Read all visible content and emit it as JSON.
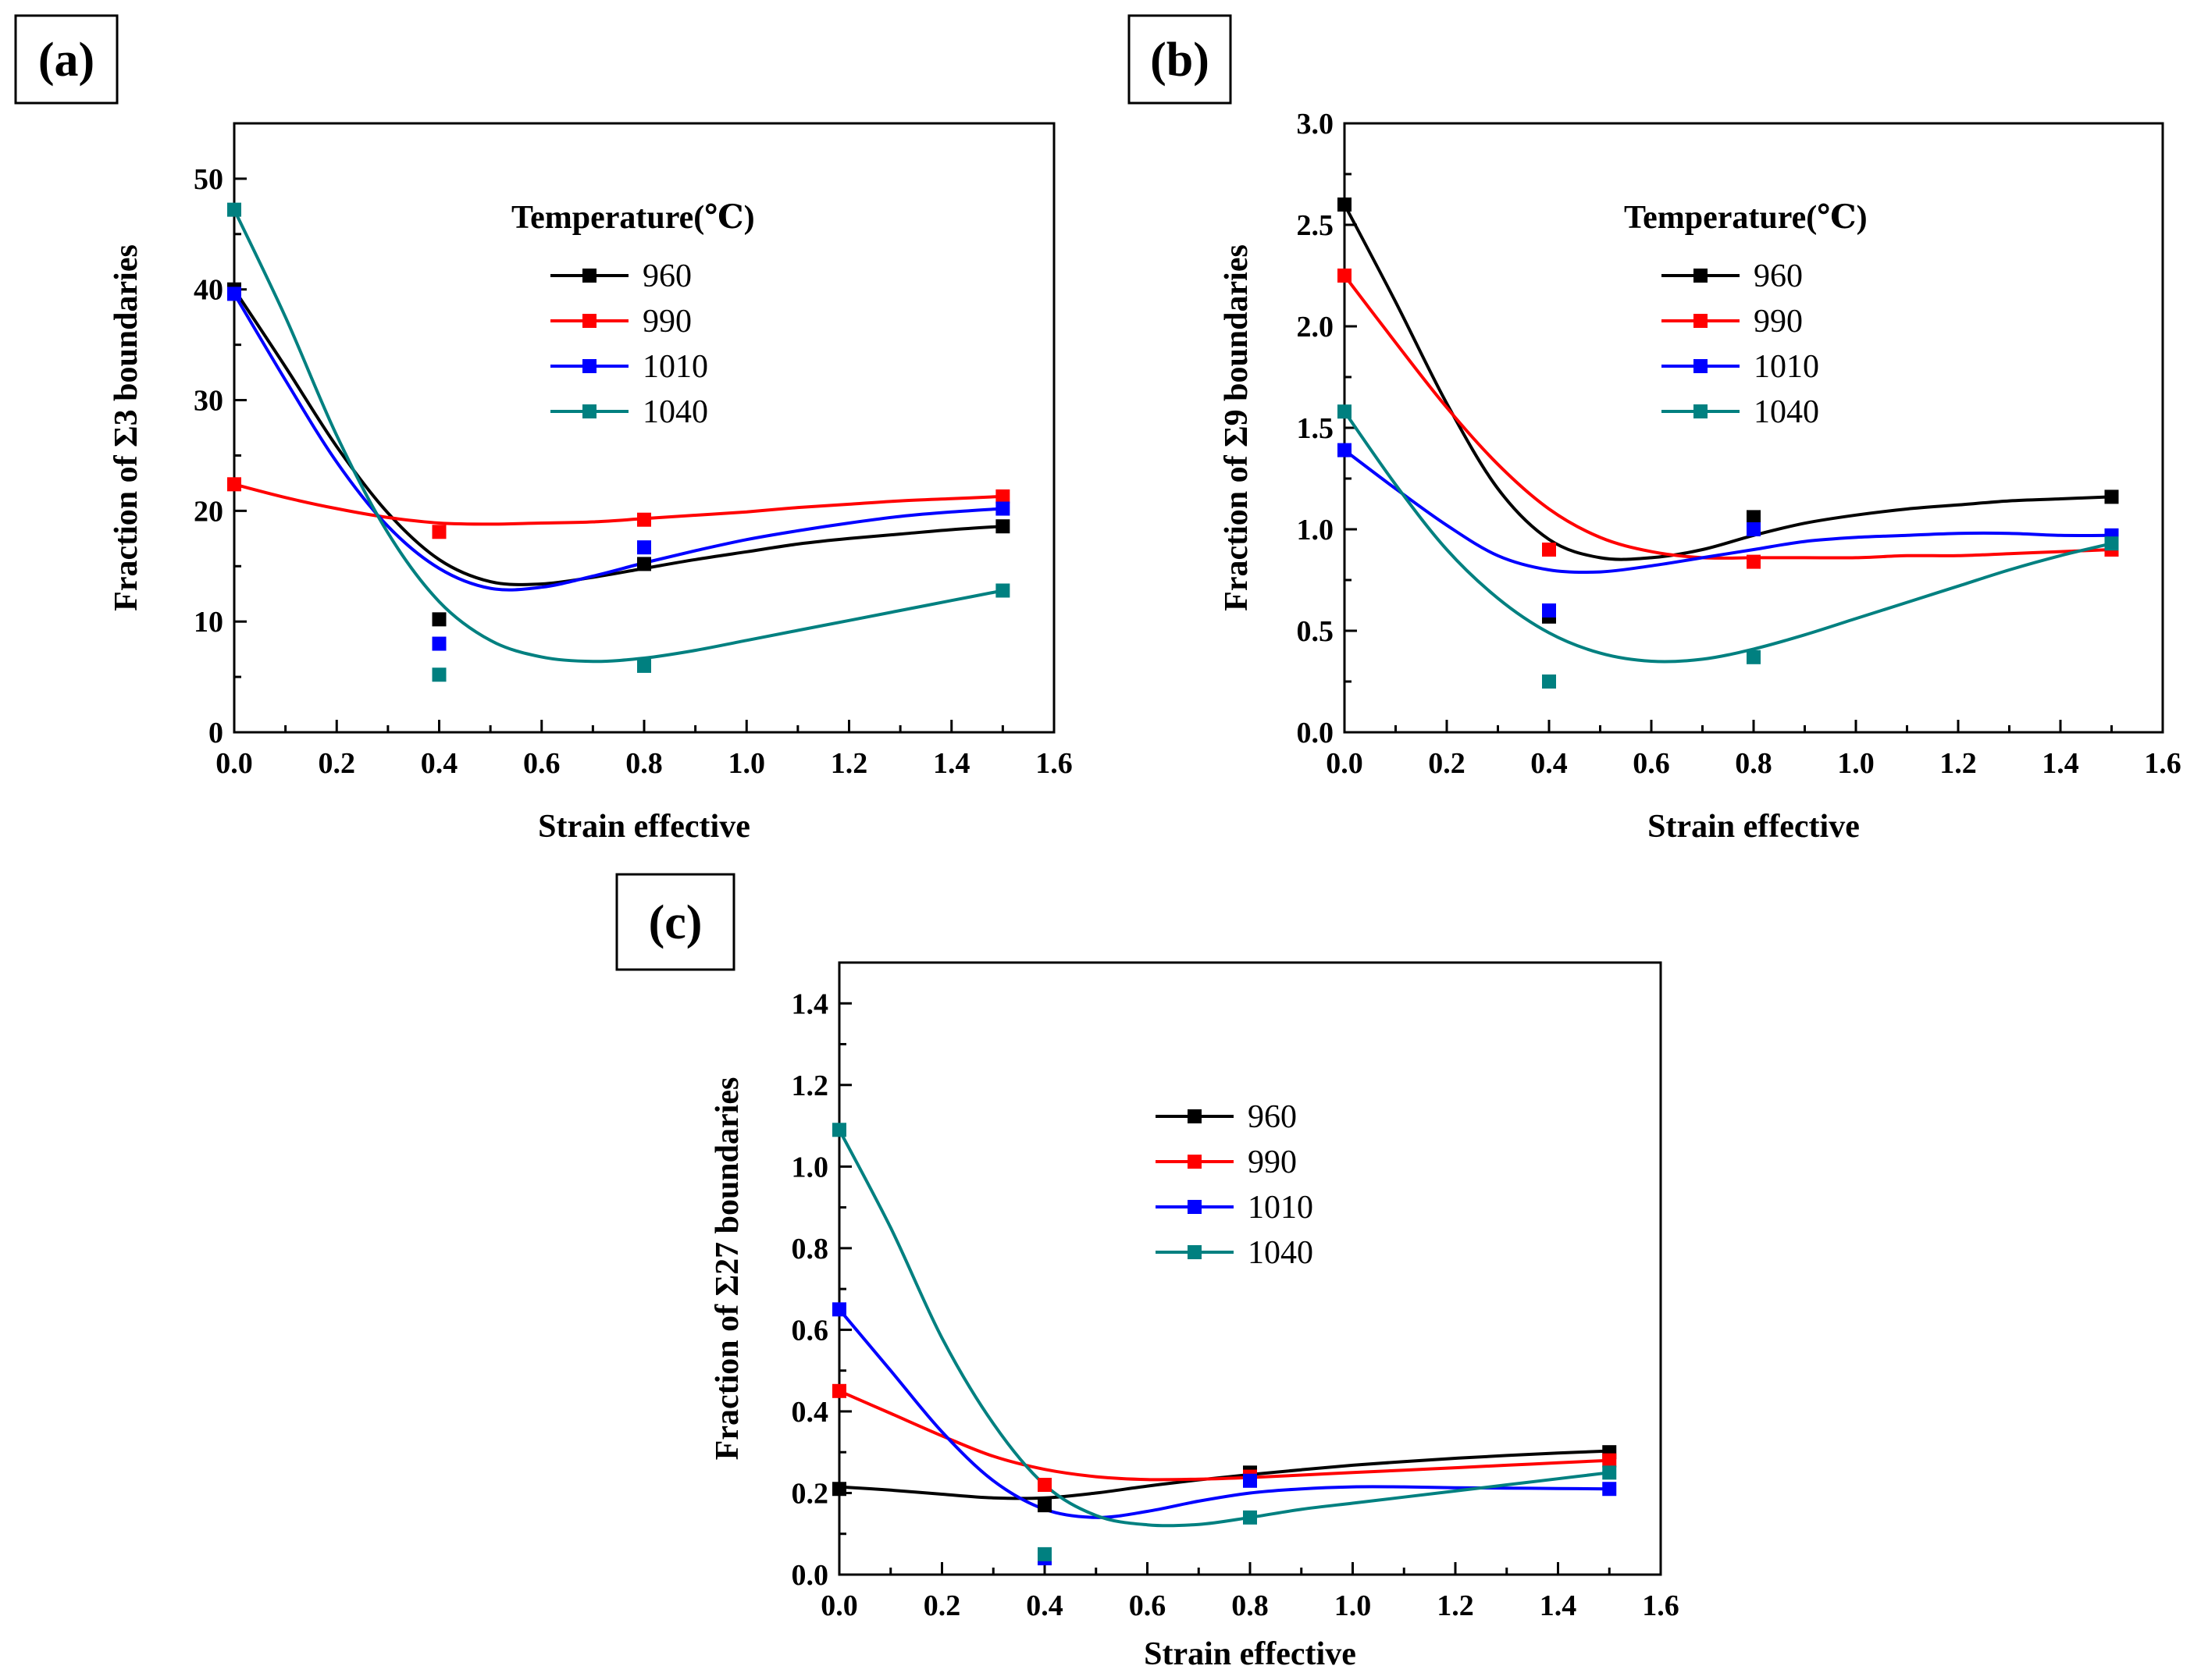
{
  "chart_data": [
    {
      "panel": "(a)",
      "type": "scatter",
      "xlabel": "Strain effective",
      "ylabel": "Fraction of Σ3 boundaries",
      "xlim": [
        0,
        1.6
      ],
      "ylim": [
        0,
        55
      ],
      "xticks": [
        0.0,
        0.2,
        0.4,
        0.6,
        0.8,
        1.0,
        1.2,
        1.4,
        1.6
      ],
      "xtick_labels": [
        "0.0",
        "0.2",
        "0.4",
        "0.6",
        "0.8",
        "1.0",
        "1.2",
        "1.4",
        "1.6"
      ],
      "yticks": [
        0,
        10,
        20,
        30,
        40,
        50
      ],
      "ytick_labels": [
        "0",
        "10",
        "20",
        "30",
        "40",
        "50"
      ],
      "legend_title": "Temperature(℃)",
      "legend_position": "top-center",
      "series": [
        {
          "name": "960",
          "color": "#000000",
          "x": [
            0,
            0.4,
            0.8,
            1.5
          ],
          "y": [
            40.0,
            10.2,
            15.2,
            18.6
          ],
          "fit_x": [
            0,
            0.1,
            0.2,
            0.3,
            0.4,
            0.5,
            0.6,
            0.7,
            0.8,
            0.9,
            1.0,
            1.1,
            1.2,
            1.3,
            1.4,
            1.5
          ],
          "fit_y": [
            40.0,
            33.0,
            25.8,
            19.8,
            15.6,
            13.6,
            13.4,
            14.0,
            14.8,
            15.6,
            16.3,
            17.0,
            17.5,
            17.9,
            18.3,
            18.6
          ]
        },
        {
          "name": "990",
          "color": "#ff0000",
          "x": [
            0,
            0.4,
            0.8,
            1.5
          ],
          "y": [
            22.4,
            18.1,
            19.2,
            21.3
          ],
          "fit_x": [
            0,
            0.1,
            0.2,
            0.3,
            0.4,
            0.5,
            0.6,
            0.7,
            0.8,
            0.9,
            1.0,
            1.1,
            1.2,
            1.3,
            1.4,
            1.5
          ],
          "fit_y": [
            22.4,
            21.2,
            20.2,
            19.4,
            18.9,
            18.8,
            18.9,
            19.0,
            19.3,
            19.6,
            19.9,
            20.3,
            20.6,
            20.9,
            21.1,
            21.3
          ]
        },
        {
          "name": "1010",
          "color": "#0000ff",
          "x": [
            0,
            0.4,
            0.8,
            1.5
          ],
          "y": [
            39.6,
            8.0,
            16.7,
            20.2
          ],
          "fit_x": [
            0,
            0.1,
            0.2,
            0.3,
            0.4,
            0.5,
            0.6,
            0.7,
            0.8,
            0.9,
            1.0,
            1.1,
            1.2,
            1.3,
            1.4,
            1.5
          ],
          "fit_y": [
            39.6,
            31.8,
            24.4,
            18.6,
            14.8,
            13.0,
            13.1,
            14.1,
            15.3,
            16.4,
            17.4,
            18.2,
            18.9,
            19.5,
            19.9,
            20.2
          ]
        },
        {
          "name": "1040",
          "color": "#008080",
          "x": [
            0,
            0.4,
            0.8,
            1.5
          ],
          "y": [
            47.2,
            5.2,
            6.0,
            12.8
          ],
          "fit_x": [
            0,
            0.1,
            0.2,
            0.3,
            0.4,
            0.5,
            0.6,
            0.7,
            0.8,
            0.9,
            1.0,
            1.1,
            1.2,
            1.3,
            1.4,
            1.5
          ],
          "fit_y": [
            47.2,
            37.5,
            26.8,
            18.0,
            11.8,
            8.3,
            6.8,
            6.4,
            6.7,
            7.4,
            8.3,
            9.2,
            10.1,
            11.0,
            11.9,
            12.8
          ]
        }
      ]
    },
    {
      "panel": "(b)",
      "type": "scatter",
      "xlabel": "Strain effective",
      "ylabel": "Fraction of Σ9 boundaries",
      "xlim": [
        0,
        1.6
      ],
      "ylim": [
        0,
        3.0
      ],
      "xticks": [
        0.0,
        0.2,
        0.4,
        0.6,
        0.8,
        1.0,
        1.2,
        1.4,
        1.6
      ],
      "xtick_labels": [
        "0.0",
        "0.2",
        "0.4",
        "0.6",
        "0.8",
        "1.0",
        "1.2",
        "1.4",
        "1.6"
      ],
      "yticks": [
        0.0,
        0.5,
        1.0,
        1.5,
        2.0,
        2.5,
        3.0
      ],
      "ytick_labels": [
        "0.0",
        "0.5",
        "1.0",
        "1.5",
        "2.0",
        "2.5",
        "3.0"
      ],
      "legend_title": "Temperature(℃)",
      "legend_position": "top-center",
      "series": [
        {
          "name": "960",
          "color": "#000000",
          "x": [
            0,
            0.4,
            0.8,
            1.5
          ],
          "y": [
            2.6,
            0.57,
            1.06,
            1.16
          ],
          "fit_x": [
            0,
            0.1,
            0.2,
            0.3,
            0.4,
            0.5,
            0.6,
            0.7,
            0.8,
            0.9,
            1.0,
            1.1,
            1.2,
            1.3,
            1.4,
            1.5
          ],
          "fit_y": [
            2.6,
            2.12,
            1.62,
            1.2,
            0.95,
            0.86,
            0.86,
            0.9,
            0.97,
            1.03,
            1.07,
            1.1,
            1.12,
            1.14,
            1.15,
            1.16
          ]
        },
        {
          "name": "990",
          "color": "#ff0000",
          "x": [
            0,
            0.4,
            0.8,
            1.5
          ],
          "y": [
            2.25,
            0.9,
            0.84,
            0.9
          ],
          "fit_x": [
            0,
            0.1,
            0.2,
            0.3,
            0.4,
            0.5,
            0.6,
            0.7,
            0.8,
            0.9,
            1.0,
            1.1,
            1.2,
            1.3,
            1.4,
            1.5
          ],
          "fit_y": [
            2.25,
            1.92,
            1.6,
            1.32,
            1.1,
            0.96,
            0.89,
            0.86,
            0.86,
            0.86,
            0.86,
            0.87,
            0.87,
            0.88,
            0.89,
            0.9
          ]
        },
        {
          "name": "1010",
          "color": "#0000ff",
          "x": [
            0,
            0.4,
            0.8,
            1.5
          ],
          "y": [
            1.39,
            0.6,
            1.0,
            0.97
          ],
          "fit_x": [
            0,
            0.1,
            0.2,
            0.3,
            0.4,
            0.5,
            0.6,
            0.7,
            0.8,
            0.9,
            1.0,
            1.1,
            1.2,
            1.3,
            1.4,
            1.5
          ],
          "fit_y": [
            1.39,
            1.2,
            1.02,
            0.87,
            0.8,
            0.79,
            0.82,
            0.86,
            0.9,
            0.94,
            0.96,
            0.97,
            0.98,
            0.98,
            0.97,
            0.97
          ]
        },
        {
          "name": "1040",
          "color": "#008080",
          "x": [
            0,
            0.4,
            0.8,
            1.5
          ],
          "y": [
            1.58,
            0.25,
            0.37,
            0.93
          ],
          "fit_x": [
            0,
            0.1,
            0.2,
            0.3,
            0.4,
            0.5,
            0.6,
            0.7,
            0.8,
            0.9,
            1.0,
            1.1,
            1.2,
            1.3,
            1.4,
            1.5
          ],
          "fit_y": [
            1.58,
            1.22,
            0.9,
            0.66,
            0.49,
            0.39,
            0.35,
            0.36,
            0.41,
            0.48,
            0.56,
            0.64,
            0.72,
            0.8,
            0.87,
            0.93
          ]
        }
      ]
    },
    {
      "panel": "(c)",
      "type": "scatter",
      "xlabel": "Strain effective",
      "ylabel": "Fraction of Σ27 boundaries",
      "xlim": [
        0,
        1.6
      ],
      "ylim": [
        0,
        1.5
      ],
      "xticks": [
        0.0,
        0.2,
        0.4,
        0.6,
        0.8,
        1.0,
        1.2,
        1.4,
        1.6
      ],
      "xtick_labels": [
        "0.0",
        "0.2",
        "0.4",
        "0.6",
        "0.8",
        "1.0",
        "1.2",
        "1.4",
        "1.6"
      ],
      "yticks": [
        0.0,
        0.2,
        0.4,
        0.6,
        0.8,
        1.0,
        1.2,
        1.4
      ],
      "ytick_labels": [
        "0.0",
        "0.2",
        "0.4",
        "0.6",
        "0.8",
        "1.0",
        "1.2",
        "1.4"
      ],
      "legend_title": "",
      "legend_position": "top-center",
      "series": [
        {
          "name": "960",
          "color": "#000000",
          "x": [
            0,
            0.4,
            0.8,
            1.5
          ],
          "y": [
            0.21,
            0.17,
            0.25,
            0.3
          ],
          "fit_x": [
            0,
            0.1,
            0.2,
            0.3,
            0.4,
            0.5,
            0.6,
            0.7,
            0.8,
            0.9,
            1.0,
            1.1,
            1.2,
            1.3,
            1.4,
            1.5
          ],
          "fit_y": [
            0.215,
            0.207,
            0.197,
            0.188,
            0.188,
            0.2,
            0.217,
            0.232,
            0.245,
            0.257,
            0.268,
            0.277,
            0.285,
            0.292,
            0.298,
            0.303
          ]
        },
        {
          "name": "990",
          "color": "#ff0000",
          "x": [
            0,
            0.4,
            0.8,
            1.5
          ],
          "y": [
            0.45,
            0.22,
            0.24,
            0.28
          ],
          "fit_x": [
            0,
            0.1,
            0.2,
            0.3,
            0.4,
            0.5,
            0.6,
            0.7,
            0.8,
            0.9,
            1.0,
            1.1,
            1.2,
            1.3,
            1.4,
            1.5
          ],
          "fit_y": [
            0.45,
            0.395,
            0.34,
            0.29,
            0.258,
            0.24,
            0.233,
            0.234,
            0.238,
            0.244,
            0.25,
            0.256,
            0.262,
            0.268,
            0.274,
            0.28
          ]
        },
        {
          "name": "1010",
          "color": "#0000ff",
          "x": [
            0,
            0.4,
            0.8,
            1.5
          ],
          "y": [
            0.65,
            0.04,
            0.23,
            0.21
          ],
          "fit_x": [
            0,
            0.1,
            0.2,
            0.3,
            0.4,
            0.5,
            0.6,
            0.7,
            0.8,
            0.9,
            1.0,
            1.1,
            1.2,
            1.3,
            1.4,
            1.5
          ],
          "fit_y": [
            0.65,
            0.5,
            0.35,
            0.23,
            0.16,
            0.14,
            0.155,
            0.18,
            0.2,
            0.21,
            0.215,
            0.215,
            0.213,
            0.212,
            0.211,
            0.21
          ]
        },
        {
          "name": "1040",
          "color": "#008080",
          "x": [
            0,
            0.4,
            0.8,
            1.5
          ],
          "y": [
            1.09,
            0.05,
            0.14,
            0.25
          ],
          "fit_x": [
            0,
            0.1,
            0.2,
            0.3,
            0.4,
            0.5,
            0.6,
            0.7,
            0.8,
            0.9,
            1.0,
            1.1,
            1.2,
            1.3,
            1.4,
            1.5
          ],
          "fit_y": [
            1.09,
            0.85,
            0.58,
            0.37,
            0.22,
            0.145,
            0.122,
            0.123,
            0.14,
            0.16,
            0.175,
            0.19,
            0.205,
            0.22,
            0.235,
            0.25
          ]
        }
      ]
    }
  ]
}
